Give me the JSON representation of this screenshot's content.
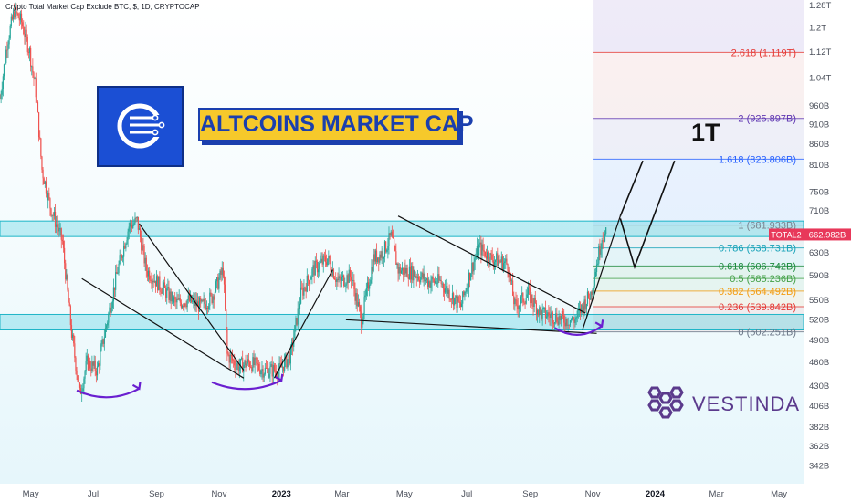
{
  "header": {
    "title": "Crypto Total Market Cap Exclude BTC, $, 1D, CRYPTOCAP"
  },
  "banner": {
    "text": "ALTCOINS MARKET CAP"
  },
  "annotation": {
    "big_label": "1T"
  },
  "brand": {
    "name": "VESTINDA",
    "icon": "vestinda-hex-logo-icon"
  },
  "logo": {
    "icon": "altcoin-network-logo-icon"
  },
  "colors": {
    "accent_blue": "#1b4fd4",
    "banner_yellow": "#f6c92b",
    "cyan_zone": "#26c6da",
    "brand_purple": "#5b3a8c",
    "arrow_purple": "#6a1fd0",
    "price_tag": "#e8385a"
  },
  "chart_data": {
    "type": "line",
    "title": "Crypto Total Market Cap Exclude BTC, $, 1D, CRYPTOCAP",
    "xlabel": "",
    "ylabel": "",
    "y_scale": "log",
    "ylim": [
      325,
      1300
    ],
    "x_ticks": [
      "May",
      "Jul",
      "Sep",
      "Nov",
      "2023",
      "Mar",
      "May",
      "Jul",
      "Sep",
      "Nov",
      "2024",
      "Mar",
      "May"
    ],
    "x_range": [
      "2022-04-01",
      "2024-05-25"
    ],
    "y_ticks": [
      "1.28T",
      "1.2T",
      "1.12T",
      "1.04T",
      "960B",
      "910B",
      "860B",
      "810B",
      "750B",
      "710B",
      "630B",
      "590B",
      "550B",
      "520B",
      "490B",
      "460B",
      "430B",
      "406B",
      "382B",
      "362B",
      "342B"
    ],
    "y_tick_values": [
      1280,
      1200,
      1120,
      1040,
      960,
      910,
      860,
      810,
      750,
      710,
      630,
      590,
      550,
      520,
      490,
      460,
      430,
      406,
      382,
      362,
      342
    ],
    "series": [
      {
        "name": "TOTAL2",
        "x": [
          "2022-04-01",
          "2022-04-08",
          "2022-04-15",
          "2022-04-22",
          "2022-04-30",
          "2022-05-06",
          "2022-05-12",
          "2022-05-20",
          "2022-06-01",
          "2022-06-10",
          "2022-06-18",
          "2022-06-25",
          "2022-07-05",
          "2022-07-15",
          "2022-07-25",
          "2022-08-05",
          "2022-08-13",
          "2022-08-22",
          "2022-09-01",
          "2022-09-12",
          "2022-09-20",
          "2022-10-01",
          "2022-10-15",
          "2022-10-25",
          "2022-11-05",
          "2022-11-09",
          "2022-11-20",
          "2022-12-01",
          "2022-12-15",
          "2022-12-30",
          "2023-01-10",
          "2023-01-20",
          "2023-02-01",
          "2023-02-15",
          "2023-02-25",
          "2023-03-10",
          "2023-03-20",
          "2023-04-01",
          "2023-04-10",
          "2023-04-18",
          "2023-04-25",
          "2023-05-10",
          "2023-05-25",
          "2023-06-05",
          "2023-06-15",
          "2023-06-25",
          "2023-07-05",
          "2023-07-13",
          "2023-07-25",
          "2023-08-10",
          "2023-08-17",
          "2023-08-30",
          "2023-09-11",
          "2023-09-25",
          "2023-10-05",
          "2023-10-15",
          "2023-10-22",
          "2023-10-30",
          "2023-11-06",
          "2023-11-10",
          "2023-11-14"
        ],
        "values": [
          980,
          1150,
          1260,
          1220,
          1120,
          1000,
          800,
          720,
          650,
          500,
          420,
          460,
          450,
          520,
          600,
          680,
          690,
          600,
          580,
          560,
          545,
          550,
          540,
          555,
          600,
          470,
          455,
          460,
          450,
          450,
          470,
          560,
          600,
          620,
          580,
          590,
          520,
          620,
          630,
          660,
          600,
          595,
          580,
          580,
          560,
          540,
          600,
          640,
          620,
          610,
          540,
          560,
          530,
          525,
          520,
          520,
          540,
          560,
          620,
          660,
          662.982
        ]
      }
    ],
    "fibonacci_levels": [
      {
        "ratio": "0",
        "value": 502.251,
        "label": "0 (502.251B)",
        "color": "#6b7787"
      },
      {
        "ratio": "0.236",
        "value": 539.842,
        "label": "0.236 (539.842B)",
        "color": "#e53935"
      },
      {
        "ratio": "0.382",
        "value": 564.492,
        "label": "0.382 (564.492B)",
        "color": "#f39c12"
      },
      {
        "ratio": "0.5",
        "value": 585.236,
        "label": "0.5 (585.236B)",
        "color": "#43a047"
      },
      {
        "ratio": "0.618",
        "value": 606.742,
        "label": "0.618 (606.742B)",
        "color": "#1b8a3c"
      },
      {
        "ratio": "0.786",
        "value": 638.731,
        "label": "0.786 (638.731B)",
        "color": "#17a2b8"
      },
      {
        "ratio": "1",
        "value": 681.933,
        "label": "1 (681.933B)",
        "color": "#7a8490"
      },
      {
        "ratio": "1.618",
        "value": 823.806,
        "label": "1.618 (823.806B)",
        "color": "#2962ff"
      },
      {
        "ratio": "2",
        "value": 925.897,
        "label": "2 (925.897B)",
        "color": "#5e35b1"
      },
      {
        "ratio": "2.618",
        "value": 1119,
        "label": "2.618 (1.119T)",
        "color": "#e53935"
      }
    ],
    "zones": [
      {
        "from": 660,
        "to": 690,
        "color": "#26c6da"
      },
      {
        "from": 505,
        "to": 528,
        "color": "#26c6da"
      }
    ],
    "trendlines": [
      {
        "from": [
          "2022-08-15",
          685
        ],
        "to": [
          "2022-11-25",
          450
        ]
      },
      {
        "from": [
          "2022-06-20",
          585
        ],
        "to": [
          "2022-11-25",
          440
        ]
      },
      {
        "from": [
          "2023-04-25",
          700
        ],
        "to": [
          "2023-10-25",
          530
        ]
      },
      {
        "from": [
          "2023-03-05",
          520
        ],
        "to": [
          "2023-11-05",
          500
        ]
      }
    ],
    "price_tags": [
      {
        "label": "TOTAL2",
        "color": "#e8385a"
      },
      {
        "label": "662.982B",
        "color": "#e8385a"
      }
    ]
  }
}
